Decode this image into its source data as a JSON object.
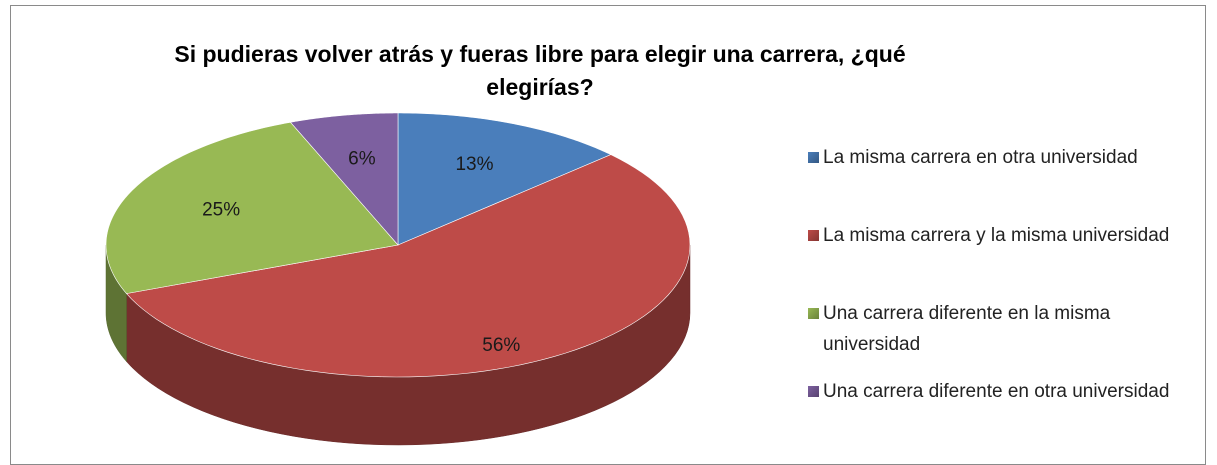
{
  "chart_data": {
    "type": "pie",
    "title": "Si pudieras volver atrás y fueras libre para elegir una carrera, ¿qué elegirías?",
    "categories": [
      "La misma carrera en otra universidad",
      "La misma carrera y la misma universidad",
      "Una carrera diferente en la misma universidad",
      "Una carrera diferente en otra universidad"
    ],
    "values": [
      13,
      56,
      25,
      6
    ],
    "value_labels": [
      "13%",
      "56%",
      "25%",
      "6%"
    ],
    "colors": [
      "#4a7ebb",
      "#be4b48",
      "#98b954",
      "#7d60a0"
    ],
    "legend": "right"
  }
}
